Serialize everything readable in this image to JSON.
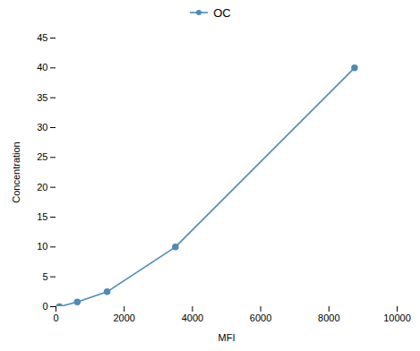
{
  "chart_data": {
    "type": "line",
    "xlabel": "MFI",
    "ylabel": "Concentration",
    "x": [
      100,
      625,
      1500,
      3500,
      8750
    ],
    "series": [
      {
        "name": "OC",
        "color": "#4e8ab5",
        "marker": "circle",
        "values": [
          0,
          0.8,
          2.5,
          10,
          40
        ]
      }
    ],
    "xlim": [
      0,
      10000
    ],
    "ylim": [
      0,
      45
    ],
    "xticks": [
      0,
      2000,
      4000,
      6000,
      8000,
      10000
    ],
    "yticks": [
      0,
      5,
      10,
      15,
      20,
      25,
      30,
      35,
      40,
      45
    ],
    "legend": "upper center"
  }
}
